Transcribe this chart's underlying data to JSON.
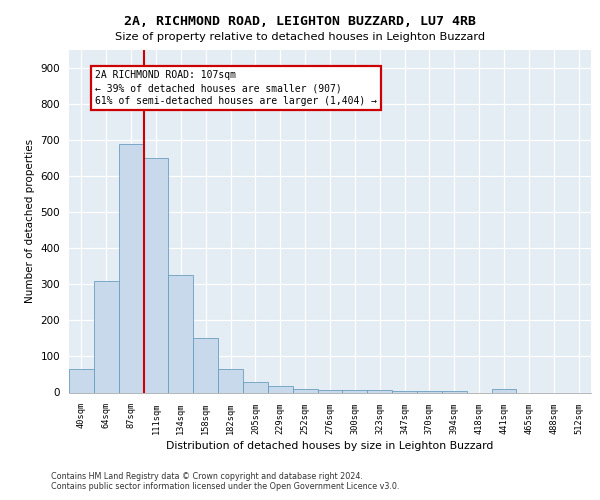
{
  "title1": "2A, RICHMOND ROAD, LEIGHTON BUZZARD, LU7 4RB",
  "title2": "Size of property relative to detached houses in Leighton Buzzard",
  "xlabel": "Distribution of detached houses by size in Leighton Buzzard",
  "ylabel": "Number of detached properties",
  "footnote1": "Contains HM Land Registry data © Crown copyright and database right 2024.",
  "footnote2": "Contains public sector information licensed under the Open Government Licence v3.0.",
  "bar_labels": [
    "40sqm",
    "64sqm",
    "87sqm",
    "111sqm",
    "134sqm",
    "158sqm",
    "182sqm",
    "205sqm",
    "229sqm",
    "252sqm",
    "276sqm",
    "300sqm",
    "323sqm",
    "347sqm",
    "370sqm",
    "394sqm",
    "418sqm",
    "441sqm",
    "465sqm",
    "488sqm",
    "512sqm"
  ],
  "bar_values": [
    65,
    310,
    690,
    650,
    325,
    150,
    65,
    30,
    18,
    10,
    8,
    7,
    6,
    5,
    4,
    3,
    0,
    10,
    0,
    0,
    0
  ],
  "bar_color": "#c9d9ec",
  "bar_edge_color": "#6a9ec0",
  "background_color": "#e4ecf4",
  "grid_color": "#ffffff",
  "red_line_index": 2.5,
  "annotation_line1": "2A RICHMOND ROAD: 107sqm",
  "annotation_line2": "← 39% of detached houses are smaller (907)",
  "annotation_line3": "61% of semi-detached houses are larger (1,404) →",
  "annotation_box_facecolor": "#ffffff",
  "annotation_box_edgecolor": "#cc0000",
  "ylim_max": 950,
  "yticks": [
    0,
    100,
    200,
    300,
    400,
    500,
    600,
    700,
    800,
    900
  ]
}
